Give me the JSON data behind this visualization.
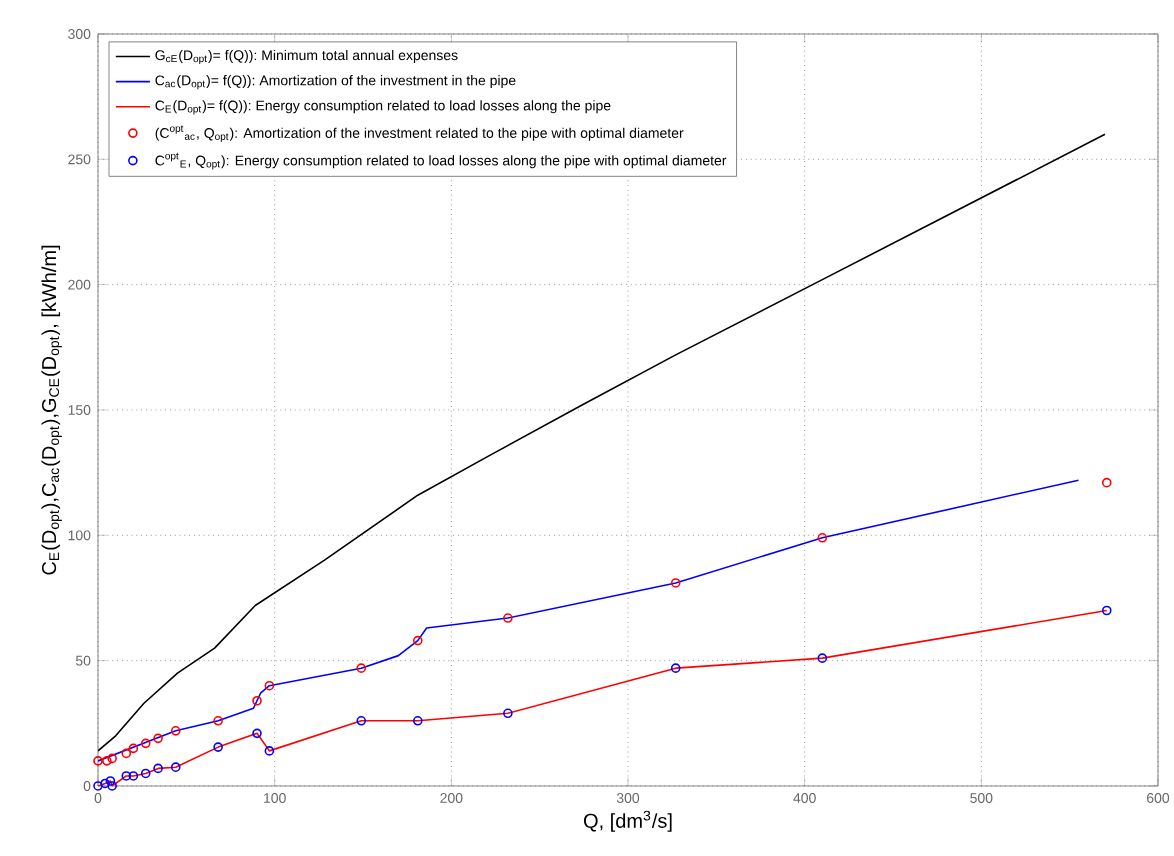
{
  "chart_data": {
    "type": "line",
    "xlabel": "Q, [dm$^{3}$/s]",
    "ylabel": "C$_{E}$(D$_{opt}$),C$_{ac}$(D$_{opt}$),G$_{CE}$(D$_{opt}$), [kWh/m]",
    "xlim": [
      0,
      600
    ],
    "ylim": [
      0,
      300
    ],
    "xticks": [
      0,
      100,
      200,
      300,
      400,
      500,
      600
    ],
    "yticks": [
      0,
      50,
      100,
      150,
      200,
      250,
      300
    ],
    "grid": true,
    "legend": "top left",
    "series": [
      {
        "name": "G$_{cE}$(D$_{opt}$)= f(Q)): Minimum total annual expenses",
        "color": "#000000",
        "line_style": "solid",
        "marker": "none",
        "x": [
          0,
          10,
          26,
          45,
          66,
          89,
          128,
          181,
          222,
          274,
          327,
          410,
          570
        ],
        "values": [
          14,
          20,
          33,
          45,
          55,
          72,
          90,
          116,
          132,
          152,
          172,
          202,
          260
        ]
      },
      {
        "name": "C$_{ac}$(D$_{opt}$)= f(Q)): Amortization of the investment in the pipe",
        "color": "#0000ff",
        "line_style": "solid",
        "marker": "none",
        "x": [
          0,
          44,
          68,
          88,
          92,
          97,
          149,
          170,
          181,
          186,
          232,
          327,
          410,
          555
        ],
        "values": [
          10,
          22,
          26,
          31,
          37,
          40,
          47,
          52,
          58,
          63,
          67,
          81,
          99,
          122
        ]
      },
      {
        "name": "C$_{E}$(D$_{opt}$)= f(Q)): Energy consumption related to load losses along the pipe",
        "color": "#ff0000",
        "line_style": "solid",
        "marker": "none",
        "x": [
          0,
          4,
          7,
          8,
          16,
          20,
          27,
          34,
          44,
          68,
          90,
          97,
          149,
          181,
          232,
          327,
          410,
          571
        ],
        "values": [
          0,
          1,
          2,
          0,
          4,
          4,
          5,
          7,
          7.5,
          15.5,
          21,
          14,
          26,
          26,
          29,
          47,
          51,
          70
        ]
      },
      {
        "name": "(C$^{opt}$$_{ac}$, Q$_{opt}$): Amortization of the investment related to the pipe with optimal diameter",
        "type": "scatter",
        "color": "#ff0000",
        "marker": "circle",
        "x": [
          0,
          5,
          8,
          16,
          20,
          27,
          34,
          44,
          68,
          90,
          97,
          149,
          181,
          232,
          327,
          410,
          571
        ],
        "values": [
          10,
          10,
          11,
          13,
          15,
          17,
          19,
          22,
          26,
          34,
          40,
          47,
          58,
          67,
          81,
          99,
          121
        ]
      },
      {
        "name": "C$^{opt}$$_{E}$, Q$_{opt}$): Energy consumption related to load losses along the pipe with optimal diameter",
        "type": "scatter",
        "color": "#0000ff",
        "marker": "circle",
        "x": [
          0,
          4,
          7,
          8,
          16,
          20,
          27,
          34,
          44,
          68,
          90,
          97,
          149,
          181,
          232,
          327,
          410,
          571
        ],
        "values": [
          0,
          1,
          2,
          0,
          4,
          4,
          5,
          7,
          7.5,
          15.5,
          21,
          14,
          26,
          26,
          29,
          47,
          51,
          70
        ]
      }
    ]
  }
}
